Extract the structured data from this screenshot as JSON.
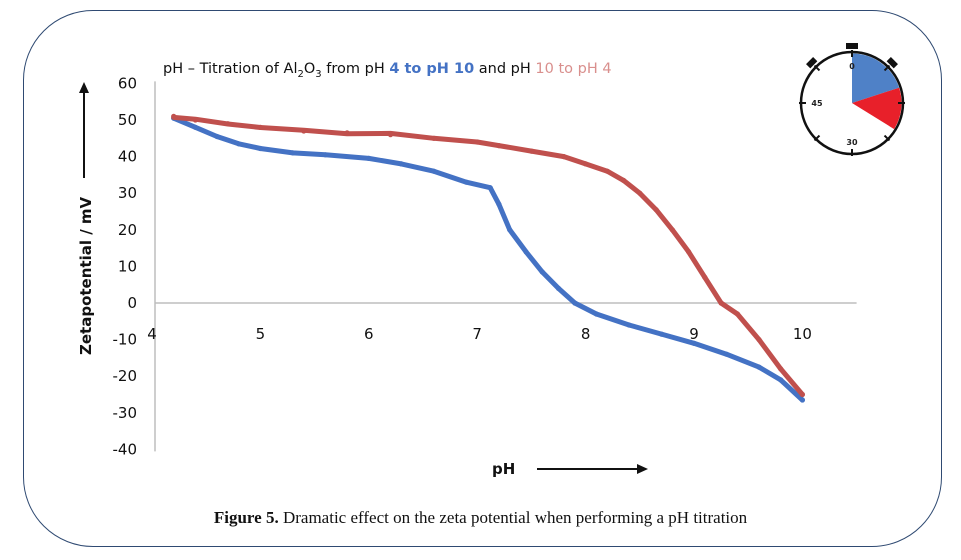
{
  "chart_data": {
    "type": "line",
    "title": {
      "prefix": "pH – Titration of ",
      "compound_main": "Al",
      "compound_sub1": "2",
      "compound_mid": "O",
      "compound_sub2": "3",
      "from_text": " from pH ",
      "forward_range": "4 to pH 10",
      "and_text": " and pH ",
      "reverse_range": "10  to pH 4"
    },
    "xlabel": "pH",
    "ylabel": "Zetapotential / mV",
    "xlim": [
      4,
      10.5
    ],
    "ylim": [
      -40,
      60
    ],
    "xticks": [
      "4",
      "5",
      "6",
      "7",
      "8",
      "9",
      "10"
    ],
    "yticks": [
      "60",
      "50",
      "40",
      "30",
      "20",
      "10",
      "0",
      "-10",
      "-20",
      "-30",
      "-40"
    ],
    "grid": false,
    "series": [
      {
        "name": "pH 4 to pH 10",
        "color": "#4472c4",
        "x": [
          4.2,
          4.4,
          4.6,
          4.8,
          5.0,
          5.3,
          5.6,
          6.0,
          6.3,
          6.6,
          6.9,
          7.12,
          7.2,
          7.3,
          7.45,
          7.6,
          7.75,
          7.9,
          8.1,
          8.4,
          8.7,
          9.0,
          9.3,
          9.6,
          9.8,
          10.0
        ],
        "y": [
          50.5,
          48,
          45.5,
          43.5,
          42.2,
          41,
          40.5,
          39.5,
          38,
          36,
          33,
          31.5,
          27,
          20,
          14,
          8.5,
          4,
          0,
          -3,
          -6,
          -8.5,
          -11,
          -14,
          -17.5,
          -21,
          -26.5
        ]
      },
      {
        "name": "pH 10 to pH 4",
        "color": "#c0504d",
        "x": [
          10.0,
          9.8,
          9.6,
          9.4,
          9.25,
          9.1,
          8.95,
          8.8,
          8.65,
          8.5,
          8.35,
          8.2,
          8.0,
          7.8,
          7.5,
          7.2,
          7.0,
          6.6,
          6.2,
          5.8,
          5.4,
          5.0,
          4.7,
          4.4,
          4.2
        ],
        "y": [
          -25,
          -18,
          -10,
          -3,
          0,
          7,
          14,
          20,
          25.5,
          30,
          33.5,
          36,
          38,
          40,
          41.5,
          43,
          44,
          45,
          46,
          46.5,
          47,
          48,
          49,
          50,
          51
        ]
      }
    ],
    "legend": "none",
    "annotations": {
      "y_arrow": "up",
      "x_arrow": "right"
    },
    "inset_stopwatch": {
      "labels": [
        "0",
        "45",
        "30"
      ],
      "segments": [
        {
          "color": "#4f81c7",
          "from_minutes": 0,
          "to_minutes": 12
        },
        {
          "color": "#e8202a",
          "from_minutes": 12,
          "to_minutes": 20.3
        }
      ]
    }
  },
  "caption": {
    "label": "Figure 5.",
    "text": " Dramatic effect on the zeta potential when performing a pH titration"
  }
}
